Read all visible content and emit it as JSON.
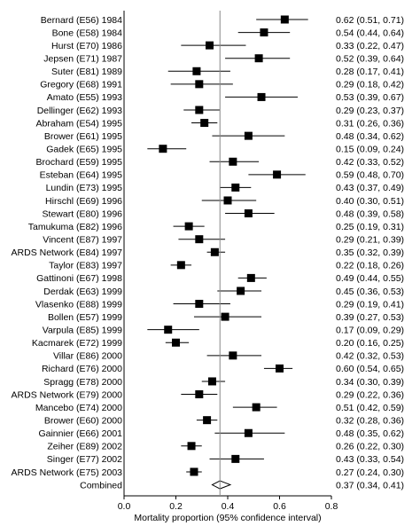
{
  "chart_data": {
    "type": "forest",
    "xlabel": "Mortality proportion (95% confidence interval)",
    "xlim": [
      0.0,
      0.8
    ],
    "xticks": [
      "0.0",
      "0.2",
      "0.4",
      "0.6",
      "0.8"
    ],
    "xtick_values": [
      0.0,
      0.2,
      0.4,
      0.6,
      0.8
    ],
    "reference_line": 0.37,
    "grid": false,
    "studies": [
      {
        "label": "Bernard (E56) 1984",
        "est": 0.62,
        "lo": 0.51,
        "hi": 0.71,
        "ci_text": "0.62 (0.51, 0.71)"
      },
      {
        "label": "Bone (E58) 1984",
        "est": 0.54,
        "lo": 0.44,
        "hi": 0.64,
        "ci_text": "0.54 (0.44, 0.64)"
      },
      {
        "label": "Hurst (E70) 1986",
        "est": 0.33,
        "lo": 0.22,
        "hi": 0.47,
        "ci_text": "0.33 (0.22, 0.47)"
      },
      {
        "label": "Jepsen (E71) 1987",
        "est": 0.52,
        "lo": 0.39,
        "hi": 0.64,
        "ci_text": "0.52 (0.39, 0.64)"
      },
      {
        "label": "Suter (E81) 1989",
        "est": 0.28,
        "lo": 0.17,
        "hi": 0.41,
        "ci_text": "0.28 (0.17, 0.41)"
      },
      {
        "label": "Gregory (E68) 1991",
        "est": 0.29,
        "lo": 0.18,
        "hi": 0.42,
        "ci_text": "0.29 (0.18, 0.42)"
      },
      {
        "label": "Amato (E55) 1993",
        "est": 0.53,
        "lo": 0.39,
        "hi": 0.67,
        "ci_text": "0.53 (0.39, 0.67)"
      },
      {
        "label": "Dellinger (E62) 1993",
        "est": 0.29,
        "lo": 0.23,
        "hi": 0.37,
        "ci_text": "0.29 (0.23, 0.37)"
      },
      {
        "label": "Abraham (E54) 1995",
        "est": 0.31,
        "lo": 0.26,
        "hi": 0.36,
        "ci_text": "0.31 (0.26, 0.36)"
      },
      {
        "label": "Brower (E61) 1995",
        "est": 0.48,
        "lo": 0.34,
        "hi": 0.62,
        "ci_text": "0.48 (0.34, 0.62)"
      },
      {
        "label": "Gadek (E65) 1995",
        "est": 0.15,
        "lo": 0.09,
        "hi": 0.24,
        "ci_text": "0.15 (0.09, 0.24)"
      },
      {
        "label": "Brochard (E59) 1995",
        "est": 0.42,
        "lo": 0.33,
        "hi": 0.52,
        "ci_text": "0.42 (0.33, 0.52)"
      },
      {
        "label": "Esteban (E64) 1995",
        "est": 0.59,
        "lo": 0.48,
        "hi": 0.7,
        "ci_text": "0.59 (0.48, 0.70)"
      },
      {
        "label": "Lundin (E73) 1995",
        "est": 0.43,
        "lo": 0.37,
        "hi": 0.49,
        "ci_text": "0.43 (0.37, 0.49)"
      },
      {
        "label": "Hirschl (E69) 1996",
        "est": 0.4,
        "lo": 0.3,
        "hi": 0.51,
        "ci_text": "0.40 (0.30, 0.51)"
      },
      {
        "label": "Stewart (E80) 1996",
        "est": 0.48,
        "lo": 0.39,
        "hi": 0.58,
        "ci_text": "0.48 (0.39, 0.58)"
      },
      {
        "label": "Tamukuma (E82) 1996",
        "est": 0.25,
        "lo": 0.19,
        "hi": 0.31,
        "ci_text": "0.25 (0.19, 0.31)"
      },
      {
        "label": "Vincent (E87) 1997",
        "est": 0.29,
        "lo": 0.21,
        "hi": 0.39,
        "ci_text": "0.29 (0.21, 0.39)"
      },
      {
        "label": "ARDS Network (E84) 1997",
        "est": 0.35,
        "lo": 0.32,
        "hi": 0.39,
        "ci_text": "0.35 (0.32, 0.39)"
      },
      {
        "label": "Taylor (E83) 1997",
        "est": 0.22,
        "lo": 0.18,
        "hi": 0.26,
        "ci_text": "0.22 (0.18, 0.26)"
      },
      {
        "label": "Gattinoni (E67) 1998",
        "est": 0.49,
        "lo": 0.44,
        "hi": 0.55,
        "ci_text": "0.49 (0.44, 0.55)"
      },
      {
        "label": "Derdak (E63) 1999",
        "est": 0.45,
        "lo": 0.36,
        "hi": 0.53,
        "ci_text": "0.45 (0.36, 0.53)"
      },
      {
        "label": "Vlasenko (E88) 1999",
        "est": 0.29,
        "lo": 0.19,
        "hi": 0.41,
        "ci_text": "0.29 (0.19, 0.41)"
      },
      {
        "label": "Bollen (E57) 1999",
        "est": 0.39,
        "lo": 0.27,
        "hi": 0.53,
        "ci_text": "0.39 (0.27, 0.53)"
      },
      {
        "label": "Varpula (E85) 1999",
        "est": 0.17,
        "lo": 0.09,
        "hi": 0.29,
        "ci_text": "0.17 (0.09, 0.29)"
      },
      {
        "label": "Kacmarek (E72) 1999",
        "est": 0.2,
        "lo": 0.16,
        "hi": 0.25,
        "ci_text": "0.20 (0.16, 0.25)"
      },
      {
        "label": "Villar (E86) 2000",
        "est": 0.42,
        "lo": 0.32,
        "hi": 0.53,
        "ci_text": "0.42 (0.32, 0.53)"
      },
      {
        "label": "Richard (E76) 2000",
        "est": 0.6,
        "lo": 0.54,
        "hi": 0.65,
        "ci_text": "0.60 (0.54, 0.65)"
      },
      {
        "label": "Spragg (E78) 2000",
        "est": 0.34,
        "lo": 0.3,
        "hi": 0.39,
        "ci_text": "0.34 (0.30, 0.39)"
      },
      {
        "label": "ARDS Network (E79) 2000",
        "est": 0.29,
        "lo": 0.22,
        "hi": 0.36,
        "ci_text": "0.29 (0.22, 0.36)"
      },
      {
        "label": "Mancebo (E74) 2000",
        "est": 0.51,
        "lo": 0.42,
        "hi": 0.59,
        "ci_text": "0.51 (0.42, 0.59)"
      },
      {
        "label": "Brower (E60) 2000",
        "est": 0.32,
        "lo": 0.28,
        "hi": 0.36,
        "ci_text": "0.32 (0.28, 0.36)"
      },
      {
        "label": "Gainnier (E66) 2001",
        "est": 0.48,
        "lo": 0.35,
        "hi": 0.62,
        "ci_text": "0.48 (0.35, 0.62)"
      },
      {
        "label": "Zeiher (E89) 2002",
        "est": 0.26,
        "lo": 0.22,
        "hi": 0.3,
        "ci_text": "0.26 (0.22, 0.30)"
      },
      {
        "label": "Singer (E77) 2002",
        "est": 0.43,
        "lo": 0.33,
        "hi": 0.54,
        "ci_text": "0.43 (0.33, 0.54)"
      },
      {
        "label": "ARDS Network (E75) 2003",
        "est": 0.27,
        "lo": 0.24,
        "hi": 0.3,
        "ci_text": "0.27 (0.24, 0.30)"
      }
    ],
    "combined": {
      "label": "Combined",
      "est": 0.37,
      "lo": 0.34,
      "hi": 0.41,
      "ci_text": "0.37 (0.34, 0.41)"
    }
  }
}
